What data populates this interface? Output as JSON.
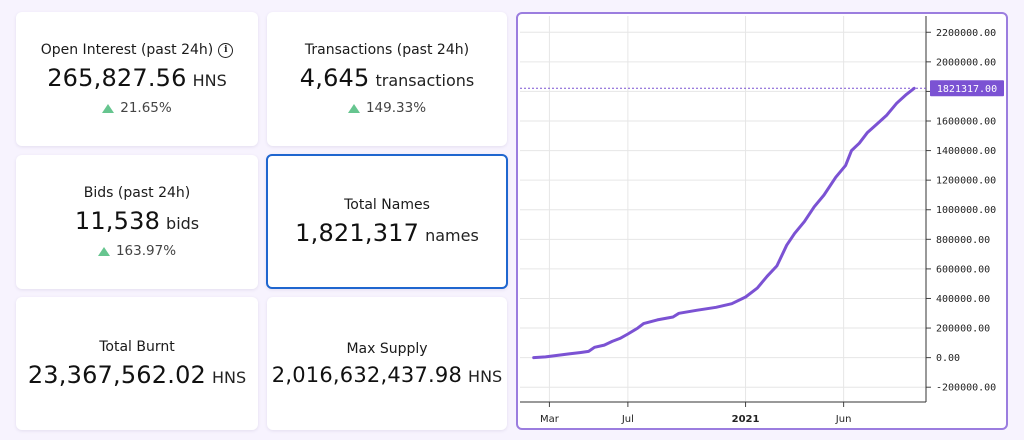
{
  "cards": {
    "open_interest": {
      "title": "Open Interest (past 24h)",
      "value": "265,827.56",
      "unit": "HNS",
      "change": "21.65%"
    },
    "transactions": {
      "title": "Transactions (past 24h)",
      "value": "4,645",
      "unit": "transactions",
      "change": "149.33%"
    },
    "bids": {
      "title": "Bids (past 24h)",
      "value": "11,538",
      "unit": "bids",
      "change": "163.97%"
    },
    "total_names": {
      "title": "Total Names",
      "value": "1,821,317",
      "unit": "names"
    },
    "total_burnt": {
      "title": "Total Burnt",
      "value": "23,367,562.02",
      "unit": "HNS"
    },
    "max_supply": {
      "title": "Max Supply",
      "value": "2,016,632,437.98",
      "unit": "HNS"
    }
  },
  "colors": {
    "accent": "#7b52d3",
    "up": "#66c58f",
    "selected_border": "#1f66cf",
    "chart_border": "#9b7ddf"
  },
  "icons": {
    "info": "info-icon",
    "up": "triangle-up-icon"
  },
  "chart_data": {
    "type": "line",
    "x_ticks": [
      {
        "label": "Mar",
        "x": 2.0,
        "bold": false
      },
      {
        "label": "Jul",
        "x": 6.0,
        "bold": false
      },
      {
        "label": "2021",
        "x": 12.0,
        "bold": true
      },
      {
        "label": "Jun",
        "x": 17.0,
        "bold": false
      }
    ],
    "y_ticks": [
      -200000,
      0,
      200000,
      400000,
      600000,
      800000,
      1000000,
      1200000,
      1400000,
      1600000,
      1800000,
      2000000,
      2200000
    ],
    "y_tick_labels": [
      "-200000.00",
      "0.00",
      "200000.00",
      "400000.00",
      "600000.00",
      "800000.00",
      "1000000.00",
      "1200000.00",
      "1400000.00",
      "1600000.00",
      "2000000.00",
      "2200000.00"
    ],
    "ylim": [
      -300000,
      2310000
    ],
    "xlim": [
      0.5,
      21.2
    ],
    "last_value": 1821317,
    "last_label": "1821317.00",
    "grid": true,
    "series": [
      {
        "color": "#7b52d3",
        "points": [
          [
            1.2,
            0
          ],
          [
            1.8,
            5000
          ],
          [
            2.4,
            15000
          ],
          [
            3.0,
            25000
          ],
          [
            3.6,
            35000
          ],
          [
            4.0,
            42000
          ],
          [
            4.3,
            70000
          ],
          [
            4.8,
            85000
          ],
          [
            5.2,
            110000
          ],
          [
            5.6,
            130000
          ],
          [
            6.0,
            160000
          ],
          [
            6.5,
            200000
          ],
          [
            6.8,
            230000
          ],
          [
            7.5,
            255000
          ],
          [
            8.3,
            275000
          ],
          [
            8.6,
            300000
          ],
          [
            9.5,
            320000
          ],
          [
            10.5,
            340000
          ],
          [
            11.3,
            365000
          ],
          [
            12.0,
            410000
          ],
          [
            12.6,
            470000
          ],
          [
            13.1,
            550000
          ],
          [
            13.6,
            620000
          ],
          [
            14.1,
            760000
          ],
          [
            14.5,
            840000
          ],
          [
            15.0,
            920000
          ],
          [
            15.5,
            1020000
          ],
          [
            16.0,
            1100000
          ],
          [
            16.6,
            1220000
          ],
          [
            17.1,
            1300000
          ],
          [
            17.4,
            1400000
          ],
          [
            17.8,
            1450000
          ],
          [
            18.2,
            1520000
          ],
          [
            18.7,
            1580000
          ],
          [
            19.2,
            1640000
          ],
          [
            19.7,
            1720000
          ],
          [
            20.2,
            1780000
          ],
          [
            20.6,
            1821317
          ]
        ]
      }
    ]
  }
}
